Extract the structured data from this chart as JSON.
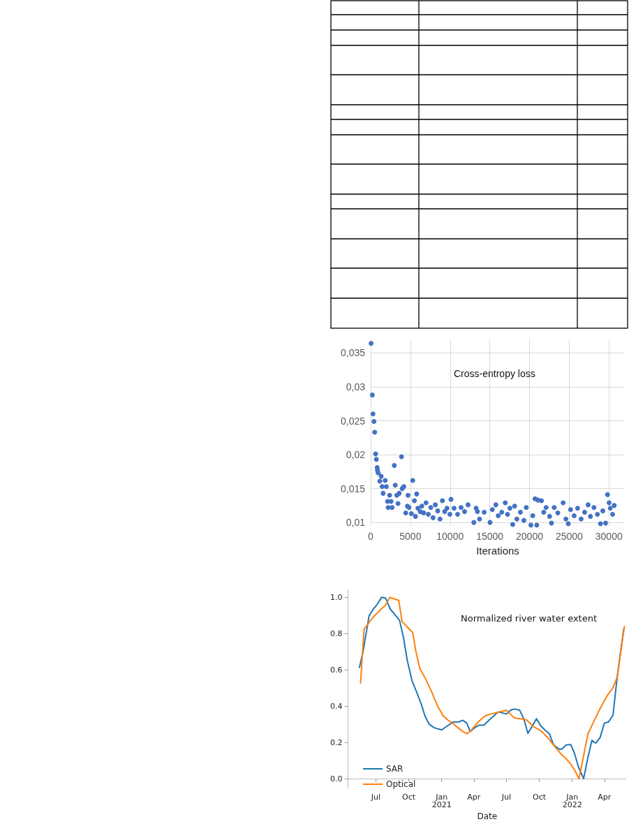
{
  "chart_data": [
    {
      "type": "scatter",
      "title": "Cross-entropy loss",
      "xlabel": "Iterations",
      "color": "#4472c4",
      "marker": "circle",
      "grid": true,
      "legend": false,
      "xlim": [
        0,
        32000
      ],
      "xticks": [
        0,
        5000,
        10000,
        15000,
        20000,
        25000,
        30000
      ],
      "ylim": [
        0.0095,
        0.037
      ],
      "yticks": [
        {
          "value": 0.01,
          "label": "0,01"
        },
        {
          "value": 0.015,
          "label": "0,015"
        },
        {
          "value": 0.02,
          "label": "0,02"
        },
        {
          "value": 0.025,
          "label": "0,025"
        },
        {
          "value": 0.03,
          "label": "0,03"
        },
        {
          "value": 0.035,
          "label": "0,035"
        }
      ],
      "x": [
        50,
        210,
        290,
        410,
        500,
        620,
        710,
        820,
        850,
        940,
        1150,
        1320,
        1440,
        1560,
        1820,
        1970,
        2120,
        2200,
        2380,
        2560,
        2700,
        2970,
        3090,
        3290,
        3440,
        3590,
        3880,
        3970,
        4170,
        4410,
        4620,
        4700,
        4820,
        5120,
        5290,
        5500,
        5640,
        5790,
        5940,
        6230,
        6440,
        6670,
        6970,
        7260,
        7560,
        7850,
        8140,
        8440,
        8730,
        9030,
        9320,
        9610,
        9970,
        10110,
        10500,
        10940,
        11380,
        11820,
        12260,
        12990,
        13270,
        13440,
        13710,
        14290,
        15030,
        15320,
        15760,
        16060,
        16500,
        16940,
        17230,
        17530,
        17880,
        18120,
        18410,
        18850,
        19290,
        19590,
        20170,
        20410,
        20700,
        20910,
        21060,
        21500,
        21790,
        22090,
        22530,
        22760,
        23110,
        23560,
        24230,
        24580,
        24880,
        25170,
        25610,
        26050,
        26500,
        26940,
        27380,
        27670,
        28110,
        28550,
        28940,
        29230,
        29580,
        29820,
        30020,
        30170,
        30460,
        30670
      ],
      "values": [
        0.0364,
        0.0288,
        0.026,
        0.0249,
        0.0233,
        0.0201,
        0.0193,
        0.0181,
        0.0177,
        0.0173,
        0.0161,
        0.0168,
        0.0153,
        0.0143,
        0.0162,
        0.0153,
        0.0131,
        0.0122,
        0.014,
        0.0131,
        0.0122,
        0.0184,
        0.0155,
        0.014,
        0.0128,
        0.0143,
        0.0197,
        0.015,
        0.0153,
        0.0114,
        0.0124,
        0.014,
        0.0122,
        0.0113,
        0.0162,
        0.0132,
        0.0109,
        0.0142,
        0.0121,
        0.0116,
        0.0124,
        0.0114,
        0.0129,
        0.0112,
        0.0122,
        0.0107,
        0.0126,
        0.0117,
        0.0105,
        0.0132,
        0.0116,
        0.0121,
        0.0112,
        0.0134,
        0.0121,
        0.0112,
        0.0122,
        0.0116,
        0.0126,
        0.01,
        0.0121,
        0.0116,
        0.0105,
        0.0115,
        0.01,
        0.0119,
        0.0126,
        0.011,
        0.0115,
        0.0129,
        0.0112,
        0.0121,
        0.0097,
        0.0124,
        0.0105,
        0.0115,
        0.0103,
        0.0122,
        0.0096,
        0.011,
        0.0135,
        0.0096,
        0.0133,
        0.0132,
        0.0115,
        0.0122,
        0.0109,
        0.0099,
        0.0122,
        0.0114,
        0.0129,
        0.0105,
        0.0098,
        0.0119,
        0.011,
        0.0121,
        0.0105,
        0.0115,
        0.0126,
        0.0109,
        0.0122,
        0.0112,
        0.0098,
        0.0117,
        0.0099,
        0.0141,
        0.0129,
        0.0121,
        0.0112,
        0.0125
      ]
    },
    {
      "type": "line",
      "title": "Normalized river water extent",
      "xlabel": "Date",
      "marker": "none",
      "line_style": "solid",
      "grid": false,
      "legend": "bottom left",
      "xlim": [
        "2020-04-14",
        "2022-06-01"
      ],
      "xticks": [
        {
          "value": "2020-07-01",
          "label": "Jul"
        },
        {
          "value": "2020-10-01",
          "label": "Oct"
        },
        {
          "value": "2021-01-01",
          "label": "Jan\n2021"
        },
        {
          "value": "2021-04-01",
          "label": "Apr"
        },
        {
          "value": "2021-07-01",
          "label": "Jul"
        },
        {
          "value": "2021-10-01",
          "label": "Oct"
        },
        {
          "value": "2022-01-01",
          "label": "Jan\n2022"
        },
        {
          "value": "2022-04-01",
          "label": "Apr"
        }
      ],
      "ylim": [
        -0.05,
        1.04
      ],
      "yticks": [
        {
          "value": 0,
          "label": "0.0"
        },
        {
          "value": 0.2,
          "label": "0.2"
        },
        {
          "value": 0.4,
          "label": "0.4"
        },
        {
          "value": 0.6,
          "label": "0.6"
        },
        {
          "value": 0.8,
          "label": "0.8"
        },
        {
          "value": 1,
          "label": "1.0"
        }
      ],
      "series": [
        {
          "name": "SAR",
          "color": "#1f77b4",
          "x": [
            "2020-05-16",
            "2020-05-26",
            "2020-06-12",
            "2020-06-24",
            "2020-07-04",
            "2020-07-17",
            "2020-07-28",
            "2020-08-10",
            "2020-08-23",
            "2020-09-05",
            "2020-09-16",
            "2020-09-27",
            "2020-10-10",
            "2020-10-23",
            "2020-11-05",
            "2020-11-15",
            "2020-11-27",
            "2020-12-11",
            "2021-01-01",
            "2021-01-16",
            "2021-02-01",
            "2021-02-17",
            "2021-03-01",
            "2021-03-12",
            "2021-03-22",
            "2021-04-02",
            "2021-04-15",
            "2021-04-29",
            "2021-05-16",
            "2021-06-08",
            "2021-07-01",
            "2021-07-14",
            "2021-07-25",
            "2021-08-07",
            "2021-08-19",
            "2021-08-30",
            "2021-09-11",
            "2021-09-23",
            "2021-10-05",
            "2021-10-18",
            "2021-10-29",
            "2021-11-10",
            "2021-11-27",
            "2021-12-04",
            "2021-12-15",
            "2021-12-28",
            "2022-01-07",
            "2022-01-19",
            "2022-02-02",
            "2022-02-14",
            "2022-02-25",
            "2022-03-08",
            "2022-03-20",
            "2022-04-01",
            "2022-04-12",
            "2022-04-25",
            "2022-05-07",
            "2022-05-25"
          ],
          "values": [
            0.613,
            0.7,
            0.898,
            0.936,
            0.96,
            1.0,
            0.997,
            0.936,
            0.905,
            0.874,
            0.78,
            0.65,
            0.54,
            0.477,
            0.41,
            0.347,
            0.3,
            0.281,
            0.269,
            0.29,
            0.312,
            0.313,
            0.322,
            0.307,
            0.26,
            0.279,
            0.295,
            0.295,
            0.328,
            0.368,
            0.357,
            0.38,
            0.384,
            0.378,
            0.328,
            0.25,
            0.289,
            0.331,
            0.291,
            0.266,
            0.248,
            0.186,
            0.161,
            0.165,
            0.186,
            0.188,
            0.142,
            0.062,
            0.0,
            0.118,
            0.211,
            0.196,
            0.227,
            0.307,
            0.312,
            0.349,
            0.564,
            0.824
          ]
        },
        {
          "name": "Optical",
          "color": "#ff7f0e",
          "x": [
            "2020-05-19",
            "2020-05-29",
            "2020-06-12",
            "2020-06-24",
            "2020-07-11",
            "2020-07-28",
            "2020-08-09",
            "2020-08-22",
            "2020-09-03",
            "2020-09-12",
            "2020-09-27",
            "2020-10-12",
            "2020-10-21",
            "2020-11-01",
            "2020-11-15",
            "2020-12-03",
            "2020-12-20",
            "2021-01-05",
            "2021-01-19",
            "2021-02-02",
            "2021-02-17",
            "2021-03-01",
            "2021-03-13",
            "2021-03-23",
            "2021-04-05",
            "2021-04-18",
            "2021-05-03",
            "2021-05-19",
            "2021-06-08",
            "2021-07-01",
            "2021-07-23",
            "2021-08-09",
            "2021-08-25",
            "2021-09-14",
            "2021-10-08",
            "2021-10-26",
            "2021-11-12",
            "2021-11-28",
            "2021-12-14",
            "2021-12-28",
            "2022-01-09",
            "2022-01-20",
            "2022-02-01",
            "2022-02-14",
            "2022-03-01",
            "2022-03-13",
            "2022-03-26",
            "2022-04-08",
            "2022-04-25",
            "2022-05-07",
            "2022-05-16",
            "2022-05-27"
          ],
          "values": [
            0.527,
            0.824,
            0.861,
            0.892,
            0.926,
            0.957,
            1.0,
            0.991,
            0.983,
            0.867,
            0.836,
            0.805,
            0.7,
            0.607,
            0.558,
            0.483,
            0.403,
            0.347,
            0.322,
            0.304,
            0.279,
            0.26,
            0.248,
            0.264,
            0.295,
            0.322,
            0.347,
            0.357,
            0.366,
            0.378,
            0.335,
            0.331,
            0.326,
            0.289,
            0.26,
            0.223,
            0.18,
            0.142,
            0.112,
            0.081,
            0.043,
            0.0,
            0.118,
            0.248,
            0.31,
            0.359,
            0.409,
            0.455,
            0.502,
            0.561,
            0.688,
            0.839
          ]
        }
      ]
    }
  ]
}
